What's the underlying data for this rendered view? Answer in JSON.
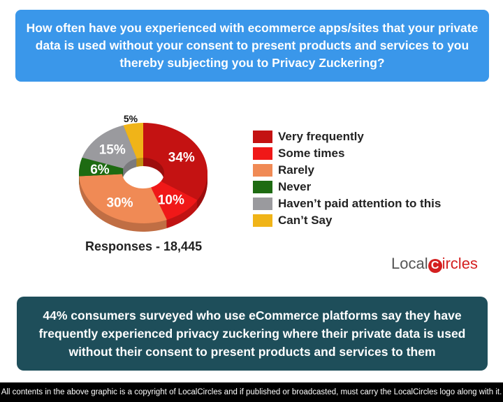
{
  "question": "How often have you experienced with ecommerce apps/sites that your private data is used without your consent to present products and services to you thereby subjecting you to Privacy Zuckering?",
  "chart_data": {
    "type": "pie",
    "categories": [
      "Very frequently",
      "Some times",
      "Rarely",
      "Never",
      "Haven't paid attention to this",
      "Can't Say"
    ],
    "values": [
      34,
      10,
      30,
      6,
      15,
      5
    ],
    "labels": [
      "34%",
      "10%",
      "30%",
      "6%",
      "15%",
      "5%"
    ],
    "colors": [
      "#c41212",
      "#f01818",
      "#f08a55",
      "#1e6b12",
      "#9a9a9e",
      "#f0b418"
    ],
    "legend": "right"
  },
  "legend": [
    "Very frequently",
    "Some times",
    "Rarely",
    "Never",
    "Haven’t paid attention to this",
    "Can’t Say"
  ],
  "responses": "Responses - 18,445",
  "logo": {
    "part1": "Local",
    "c": "C",
    "part2": "ircles"
  },
  "conclusion": "44% consumers surveyed who use eCommerce platforms say they have frequently experienced privacy zuckering where their private data is used without their consent to present products and services to them",
  "footer": "All contents in the above graphic is a copyright of LocalCircles and if published or broadcasted, must carry the LocalCircles logo along with it."
}
